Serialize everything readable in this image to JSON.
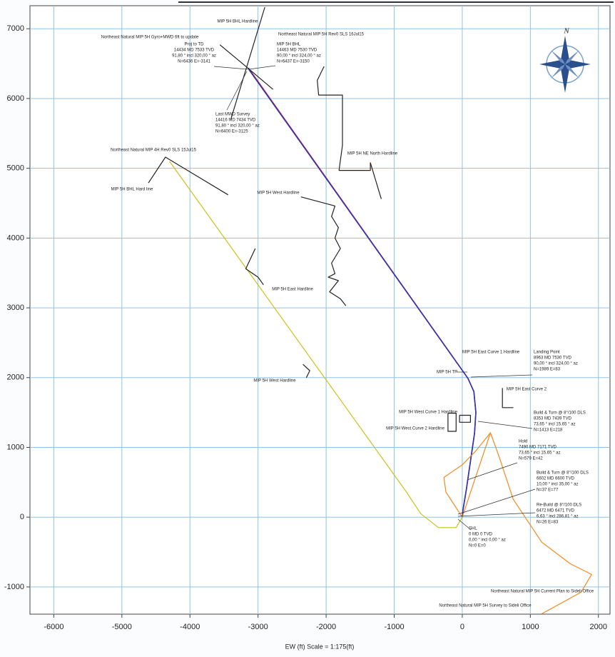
{
  "chart_data": {
    "type": "line",
    "x_label": "EW (ft) Scale = 1:175(ft)",
    "xlim": [
      -6350,
      2170
    ],
    "ylim": [
      -1390,
      7330
    ],
    "xticks": [
      -6000,
      -5000,
      -4000,
      -3000,
      -2000,
      -1000,
      0,
      1000,
      2000
    ],
    "yticks": [
      -1000,
      0,
      1000,
      2000,
      3000,
      4000,
      5000,
      6000,
      7000
    ],
    "grid": true,
    "series": [
      {
        "name": "Northeast Natural MIP 5H Gyro+MWD 6ft to update",
        "color": "#e8202a",
        "x": [
          0,
          10,
          60,
          120,
          180,
          200,
          170,
          83,
          -3140
        ],
        "values": [
          0,
          100,
          400,
          800,
          1200,
          1500,
          1800,
          1989,
          6436
        ]
      },
      {
        "name": "Northeast Natural MIP 5H Rev0 SLS 16Jul15",
        "color": "#2b35b5",
        "x": [
          0,
          10,
          60,
          120,
          180,
          200,
          170,
          83,
          -3150
        ],
        "values": [
          0,
          100,
          400,
          800,
          1200,
          1500,
          1800,
          1989,
          6437
        ]
      },
      {
        "name": "Northeast Natural MIP 4H Rev0 SLS 15Jul15",
        "color": "#c9c21a",
        "x": [
          0,
          -90,
          -350,
          -610,
          -820,
          -4300
        ],
        "values": [
          0,
          -150,
          -150,
          50,
          360,
          5100
        ]
      },
      {
        "name": "Northeast Natural MIP 5H Current Plan to Sideli Office",
        "color": "#f28a1e",
        "x": [
          0,
          414,
          539,
          749,
          1168,
          1586,
          1900,
          1743,
          1168
        ],
        "values": [
          0,
          1210,
          872,
          256,
          -359,
          -667,
          -821,
          -1077,
          -1385
        ]
      },
      {
        "name": "Northeast Natural MIP 5H Survey to Sideli Office",
        "color": "#f28a1e",
        "x": [
          0,
          -240,
          -270,
          0,
          200,
          414
        ],
        "values": [
          0,
          360,
          570,
          750,
          950,
          1210
        ]
      },
      {
        "name": "MIP 5H BHL Hardline",
        "color": "#222222",
        "x": [
          -3560,
          -3150,
          -2780,
          null,
          -2900,
          -3400
        ],
        "values": [
          6770,
          6437,
          6130,
          null,
          7310,
          5700
        ]
      },
      {
        "name": "MIP 5H NE North Hardline",
        "color": "#222222",
        "x": [
          -2030,
          -2130,
          -2110,
          -1760,
          -1760,
          -1810,
          -1350,
          -1350,
          -1190
        ],
        "values": [
          6460,
          6260,
          6050,
          6050,
          5330,
          4970,
          4970,
          5080,
          4560
        ]
      },
      {
        "name": "MIP 5H West Hardline",
        "color": "#222222",
        "x": [
          -2370,
          -1870,
          -1920,
          -1820,
          -1870,
          -1790,
          -1920,
          -1870,
          -1970,
          -1820,
          -1950,
          -1790,
          -1710
        ],
        "values": [
          4590,
          4460,
          4310,
          4150,
          4000,
          3850,
          3640,
          3490,
          3440,
          3390,
          3230,
          3130,
          3030
        ]
      },
      {
        "name": "MIP 5H BHL Hard line",
        "color": "#222222",
        "x": [
          -4610,
          -4360,
          -3440
        ],
        "values": [
          4790,
          5160,
          4620
        ]
      },
      {
        "name": "MIP 5H East Hardline",
        "color": "#222222",
        "x": [
          -3040,
          -3180,
          -3000,
          -2920
        ],
        "values": [
          3850,
          3560,
          3440,
          3330
        ]
      },
      {
        "name": "MIP 5H West Hardline",
        "color": "#222222",
        "x": [
          -2340,
          -2240,
          -2290
        ],
        "values": [
          2190,
          2100,
          2000
        ]
      },
      {
        "name": "MIP 5H East Curve 2",
        "color": "#222222",
        "x": [
          590,
          590,
          750
        ],
        "values": [
          1850,
          1570,
          1570
        ]
      },
      {
        "name": "MIP 5H West Curve 1 Hardline",
        "color": "#222222",
        "x": [
          -40,
          120,
          120,
          -40,
          -40
        ],
        "values": [
          1460,
          1460,
          1360,
          1360,
          1460
        ]
      },
      {
        "name": "MIP 5H West Curve 2 Hardline",
        "color": "#222222",
        "x": [
          -210,
          -90,
          -90,
          -210,
          -210
        ],
        "values": [
          1490,
          1490,
          1230,
          1230,
          1490
        ]
      }
    ],
    "annotations": [
      {
        "lines": [
          "Proj to TD",
          "14434 MD 7533 TVD",
          "91,80 ° incl 320,00 ° az",
          "N=6436 E=-3141"
        ]
      },
      {
        "lines": [
          "MIP 5H BHL",
          "14463 MD 7530 TVD",
          "90,00 ° incl 324,00 ° az",
          "N=6437 E=-3150"
        ]
      },
      {
        "lines": [
          "Last MWD Survey",
          "14416 MD 7434 TVD",
          "91,80 ° incl 320,00 ° az",
          "N=6400 E=-3125"
        ]
      },
      {
        "lines": [
          "MIP 5H East Curve 1 Hardline"
        ]
      },
      {
        "lines": [
          "MIP 5H TP"
        ]
      },
      {
        "lines": [
          "Landing Point",
          "8963 MD 7530 TVD",
          "90,00 ° incl 324,00 ° az",
          "N=1989 E=83"
        ]
      },
      {
        "lines": [
          "Build & Turn @ 8°/100 DLS",
          "8353 MD 7439 TVD",
          "73,65 ° incl 15,65 ° az",
          "N=1413 E=218"
        ]
      },
      {
        "lines": [
          "Hold",
          "7490 MD 7171 TVD",
          "73,65 ° incl 15,65 ° az",
          "N=579 E=42"
        ]
      },
      {
        "lines": [
          "Build & Turn @ 8°/100 DLS",
          "6602 MD 6600 TVD",
          "10,00 ° incl 35,00 ° az",
          "N=37 E=77"
        ]
      },
      {
        "lines": [
          "Re-Build @ 8°/100 DLS",
          "6472 MD 6471 TVD",
          "6,63 ° incl 286,81 ° az",
          "N=26 E=83"
        ]
      },
      {
        "lines": [
          "SHL",
          "0 MD 0 TVD",
          "0,00 ° incl 0,00 ° az",
          "N=0 E=0"
        ]
      }
    ]
  }
}
